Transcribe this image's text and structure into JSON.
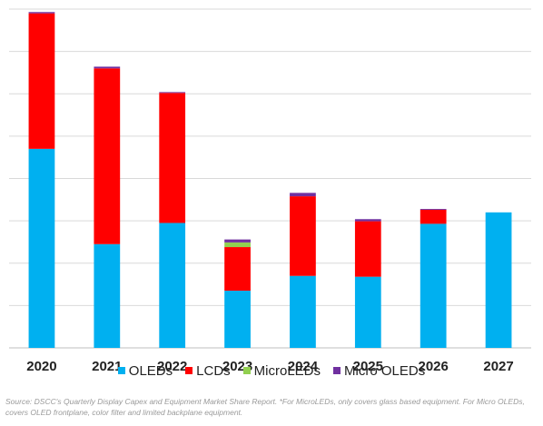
{
  "chart_data": {
    "type": "bar",
    "stacked": true,
    "categories": [
      "2020",
      "2021",
      "2022",
      "2023",
      "2024",
      "2025",
      "2026",
      "2027"
    ],
    "ylim": [
      0,
      8
    ],
    "grid": true,
    "legend_position": "bottom",
    "series": [
      {
        "name": "OLEDs",
        "color": "#00b0f0",
        "values": [
          4.7,
          2.45,
          2.95,
          1.35,
          1.7,
          1.68,
          2.93,
          3.2
        ]
      },
      {
        "name": "LCDs",
        "color": "#ff0000",
        "values": [
          3.2,
          4.15,
          3.07,
          1.03,
          1.88,
          1.31,
          0.33,
          0
        ]
      },
      {
        "name": "MicroLEDs",
        "color": "#92d050",
        "values": [
          0,
          0,
          0,
          0.11,
          0,
          0,
          0,
          0
        ]
      },
      {
        "name": "Micro OLEDs",
        "color": "#7030a0",
        "values": [
          0.03,
          0.04,
          0.02,
          0.07,
          0.08,
          0.05,
          0.02,
          0
        ]
      }
    ]
  },
  "source_note": "Source: DSCC's Quarterly Display Capex and Equipment Market Share Report. *For MicroLEDs, only covers glass based equipment. For Micro OLEDs, covers OLED frontplane, color filter and limited backplane equipment."
}
